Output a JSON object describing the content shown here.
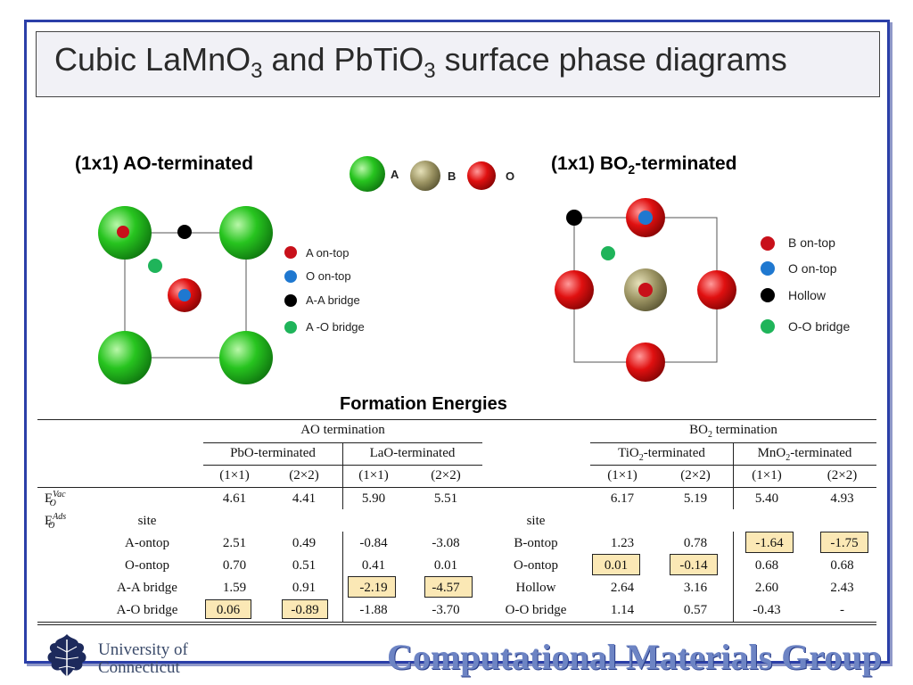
{
  "slide": {
    "title_parts": [
      "Cubic LaMnO",
      "3",
      " and PbTiO",
      "3",
      " surface phase diagrams"
    ],
    "colors": {
      "frame": "#2b3fa8",
      "a_atom": "#22c322",
      "b_atom": "#9c9463",
      "o_atom": "#d81414",
      "site_red": "#c8101a",
      "site_blue": "#1f78d0",
      "site_black": "#000000",
      "site_green": "#1fb45a",
      "highlight": "#fbe8b5",
      "footer": "#6d84c4"
    }
  },
  "ao_panel": {
    "heading": "(1x1) AO-terminated",
    "legend": [
      "A on-top",
      "O on-top",
      "A-A bridge",
      "A -O bridge"
    ]
  },
  "atom_key": {
    "a": "A",
    "b": "B",
    "o": "O"
  },
  "bo2_panel": {
    "heading_parts": [
      "(1x1) BO",
      "2",
      "-terminated"
    ],
    "legend": [
      "B on-top",
      "O on-top",
      "Hollow",
      "O-O bridge"
    ]
  },
  "table": {
    "caption": "Formation Energies",
    "group_ao": "AO termination",
    "group_bo2": [
      "BO",
      "2",
      " termination"
    ],
    "sub_pbo": "PbO-terminated",
    "sub_lao": "LaO-terminated",
    "sub_tio2": [
      "TiO",
      "2",
      "-terminated"
    ],
    "sub_mno2": [
      "MnO",
      "2",
      "-terminated"
    ],
    "cell_sizes": [
      "(1×1)",
      "(2×2)",
      "(1×1)",
      "(2×2)",
      "(1×1)",
      "(2×2)",
      "(1×1)",
      "(2×2)"
    ],
    "evac": {
      "label": "E",
      "sub": "O",
      "sup": "Vac",
      "ao_values": [
        "4.61",
        "4.41",
        "5.90",
        "5.51"
      ],
      "bo2_values": [
        "6.17",
        "5.19",
        "5.40",
        "4.93"
      ]
    },
    "eads": {
      "label": "E",
      "sub": "O",
      "sup": "Ads"
    },
    "site_label_ao": "site",
    "site_label_bo2": "site",
    "ao_rows": [
      {
        "site": "A-ontop",
        "values": [
          "2.51",
          "0.49",
          "-0.84",
          "-3.08"
        ]
      },
      {
        "site": "O-ontop",
        "values": [
          "0.70",
          "0.51",
          "0.41",
          "0.01"
        ]
      },
      {
        "site": "A-A bridge",
        "values": [
          "1.59",
          "0.91",
          "-2.19",
          "-4.57"
        ]
      },
      {
        "site": "A-O bridge",
        "values": [
          "0.06",
          "-0.89",
          "-1.88",
          "-3.70"
        ]
      }
    ],
    "bo2_rows": [
      {
        "site": "B-ontop",
        "values": [
          "1.23",
          "0.78",
          "-1.64",
          "-1.75"
        ]
      },
      {
        "site": "O-ontop",
        "values": [
          "0.01",
          "-0.14",
          "0.68",
          "0.68"
        ]
      },
      {
        "site": "Hollow",
        "values": [
          "2.64",
          "3.16",
          "2.60",
          "2.43"
        ]
      },
      {
        "site": "O-O bridge",
        "values": [
          "1.14",
          "0.57",
          "-0.43",
          "-"
        ]
      }
    ]
  },
  "footer": {
    "university_line1": "University of",
    "university_line2": "Connecticut",
    "group_name": "Computational Materials Group"
  }
}
